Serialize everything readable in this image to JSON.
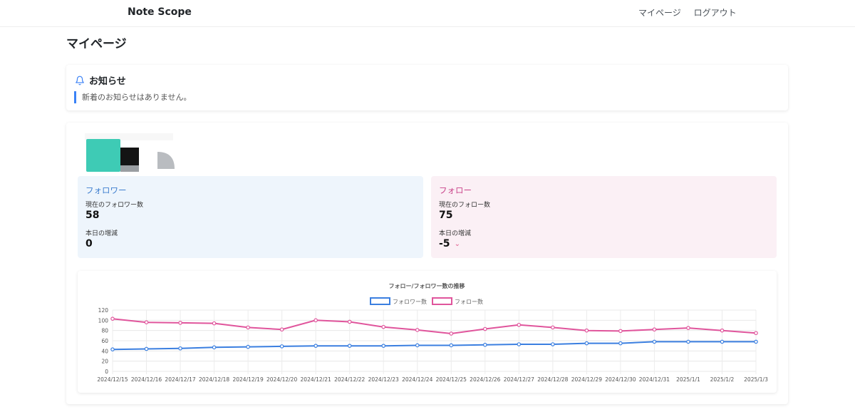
{
  "navbar": {
    "brand": "Note Scope",
    "links": [
      "マイページ",
      "ログアウト"
    ]
  },
  "page_title": "マイページ",
  "notice": {
    "title": "お知らせ",
    "message": "新着のお知らせはありません。",
    "icon": "bell-icon"
  },
  "stats": {
    "follower": {
      "heading": "フォロワー",
      "current_label": "現在のフォロワー数",
      "current_value": "58",
      "delta_label": "本日の増減",
      "delta_value": "0"
    },
    "follow": {
      "heading": "フォロー",
      "current_label": "現在のフォロー数",
      "current_value": "75",
      "delta_label": "本日の増減",
      "delta_value": "-5",
      "delta_icon": "chevron-down-icon"
    }
  },
  "colors": {
    "follower_line": "#3b7fe0",
    "follow_line": "#e0559c",
    "accent": "#3b82f6"
  },
  "chart_data": {
    "type": "line",
    "title": "フォロー/フォロワー数の推移",
    "categories": [
      "2024/12/15",
      "2024/12/16",
      "2024/12/17",
      "2024/12/18",
      "2024/12/19",
      "2024/12/20",
      "2024/12/21",
      "2024/12/22",
      "2024/12/23",
      "2024/12/24",
      "2024/12/25",
      "2024/12/26",
      "2024/12/27",
      "2024/12/28",
      "2024/12/29",
      "2024/12/30",
      "2024/12/31",
      "2025/1/1",
      "2025/1/2",
      "2025/1/3"
    ],
    "series": [
      {
        "name": "フォロワー数",
        "values": [
          43,
          44,
          45,
          47,
          48,
          49,
          50,
          50,
          50,
          51,
          51,
          52,
          53,
          53,
          55,
          55,
          58,
          58,
          58,
          58
        ]
      },
      {
        "name": "フォロー数",
        "values": [
          103,
          96,
          95,
          94,
          86,
          82,
          100,
          97,
          87,
          81,
          74,
          83,
          91,
          86,
          80,
          79,
          82,
          85,
          80,
          75
        ]
      }
    ],
    "ylim": [
      0,
      120
    ],
    "yticks": [
      0,
      20,
      40,
      60,
      80,
      100,
      120
    ],
    "legend": "top-center",
    "grid": true
  }
}
